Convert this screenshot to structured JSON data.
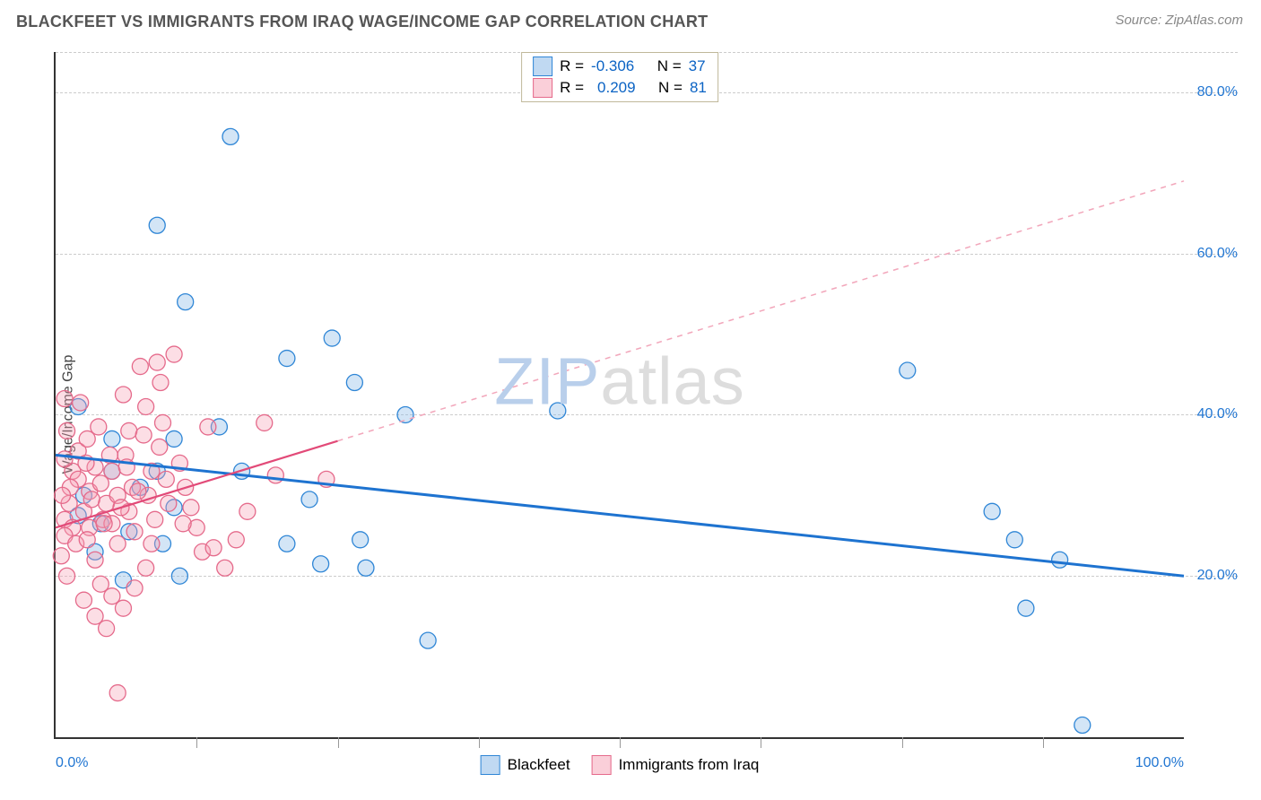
{
  "header": {
    "title": "BLACKFEET VS IMMIGRANTS FROM IRAQ WAGE/INCOME GAP CORRELATION CHART",
    "source": "Source: ZipAtlas.com"
  },
  "watermark": {
    "part1": "ZIP",
    "part2": "atlas"
  },
  "chart": {
    "type": "scatter",
    "ylabel": "Wage/Income Gap",
    "xlim": [
      0,
      100
    ],
    "ylim": [
      0,
      85
    ],
    "background_color": "#ffffff",
    "grid_color": "#cccccc",
    "axis_color": "#333333",
    "tick_label_color": "#2176d2",
    "marker_radius": 9,
    "y_gridlines": [
      20,
      40,
      60,
      80
    ],
    "y_tick_labels": [
      "20.0%",
      "40.0%",
      "60.0%",
      "80.0%"
    ],
    "x_ticks_minor": [
      12.5,
      25,
      37.5,
      50,
      62.5,
      75,
      87.5
    ],
    "x_tick_labels": [
      {
        "pos": 0,
        "text": "0.0%",
        "align": "left"
      },
      {
        "pos": 100,
        "text": "100.0%",
        "align": "right"
      }
    ],
    "series": [
      {
        "name": "Blackfeet",
        "color_fill": "rgba(130,180,230,0.35)",
        "color_stroke": "#2f86d6",
        "R": "-0.306",
        "N": "37",
        "trend": {
          "x1": 0,
          "y1": 35.0,
          "x2": 100,
          "y2": 20.0,
          "solid_until_x": 100,
          "color": "#1e73d0",
          "width": 3
        },
        "points": [
          [
            15.5,
            74.5
          ],
          [
            9.0,
            63.5
          ],
          [
            11.5,
            54.0
          ],
          [
            20.5,
            47.0
          ],
          [
            24.5,
            49.5
          ],
          [
            31.0,
            40.0
          ],
          [
            14.5,
            38.5
          ],
          [
            10.5,
            37.0
          ],
          [
            16.5,
            33.0
          ],
          [
            9.0,
            33.0
          ],
          [
            5.0,
            33.0
          ],
          [
            2.5,
            30.0
          ],
          [
            2.0,
            27.5
          ],
          [
            10.5,
            28.5
          ],
          [
            20.5,
            24.0
          ],
          [
            22.5,
            29.5
          ],
          [
            27.5,
            21.0
          ],
          [
            23.5,
            21.5
          ],
          [
            27.0,
            24.5
          ],
          [
            11.0,
            20.0
          ],
          [
            4.0,
            26.5
          ],
          [
            33.0,
            12.0
          ],
          [
            44.5,
            40.5
          ],
          [
            75.5,
            45.5
          ],
          [
            83.0,
            28.0
          ],
          [
            85.0,
            24.5
          ],
          [
            89.0,
            22.0
          ],
          [
            86.0,
            16.0
          ],
          [
            91.0,
            1.5
          ],
          [
            2.0,
            41.0
          ],
          [
            5.0,
            37.0
          ],
          [
            7.5,
            31.0
          ],
          [
            6.5,
            25.5
          ],
          [
            3.5,
            23.0
          ],
          [
            6.0,
            19.5
          ],
          [
            9.5,
            24.0
          ],
          [
            26.5,
            44.0
          ]
        ]
      },
      {
        "name": "Immigrants from Iraq",
        "color_fill": "rgba(245,160,180,0.35)",
        "color_stroke": "#e56a8b",
        "R": "0.209",
        "N": "81",
        "trend": {
          "x1": 0,
          "y1": 26.0,
          "x2": 100,
          "y2": 69.0,
          "solid_until_x": 25,
          "color": "#e24a78",
          "dash_color": "#f2a7bb",
          "width": 2.2
        },
        "points": [
          [
            0.8,
            42.0
          ],
          [
            1.5,
            33.0
          ],
          [
            0.8,
            34.5
          ],
          [
            2.0,
            35.5
          ],
          [
            1.2,
            29.0
          ],
          [
            0.8,
            27.0
          ],
          [
            1.5,
            26.0
          ],
          [
            0.8,
            25.0
          ],
          [
            1.8,
            24.0
          ],
          [
            0.5,
            22.5
          ],
          [
            1.0,
            20.0
          ],
          [
            2.2,
            41.5
          ],
          [
            2.8,
            37.0
          ],
          [
            3.5,
            33.5
          ],
          [
            3.0,
            30.5
          ],
          [
            2.5,
            28.0
          ],
          [
            3.0,
            26.0
          ],
          [
            2.8,
            24.5
          ],
          [
            3.5,
            22.0
          ],
          [
            4.0,
            31.5
          ],
          [
            4.5,
            29.0
          ],
          [
            4.2,
            27.0
          ],
          [
            5.0,
            33.0
          ],
          [
            5.5,
            30.0
          ],
          [
            5.0,
            26.5
          ],
          [
            5.5,
            24.0
          ],
          [
            6.0,
            42.5
          ],
          [
            6.5,
            38.0
          ],
          [
            6.2,
            35.0
          ],
          [
            6.8,
            31.0
          ],
          [
            6.5,
            28.0
          ],
          [
            7.0,
            25.5
          ],
          [
            7.5,
            46.0
          ],
          [
            8.0,
            41.0
          ],
          [
            7.8,
            37.5
          ],
          [
            8.5,
            33.0
          ],
          [
            8.2,
            30.0
          ],
          [
            8.8,
            27.0
          ],
          [
            8.5,
            24.0
          ],
          [
            9.0,
            46.5
          ],
          [
            9.5,
            39.0
          ],
          [
            9.2,
            36.0
          ],
          [
            9.8,
            32.0
          ],
          [
            10.0,
            29.0
          ],
          [
            10.5,
            47.5
          ],
          [
            11.0,
            34.0
          ],
          [
            11.5,
            31.0
          ],
          [
            12.0,
            28.5
          ],
          [
            12.5,
            26.0
          ],
          [
            13.0,
            23.0
          ],
          [
            4.0,
            19.0
          ],
          [
            5.0,
            17.5
          ],
          [
            6.0,
            16.0
          ],
          [
            7.0,
            18.5
          ],
          [
            8.0,
            21.0
          ],
          [
            3.5,
            15.0
          ],
          [
            2.5,
            17.0
          ],
          [
            4.5,
            13.5
          ],
          [
            5.5,
            5.5
          ],
          [
            13.5,
            38.5
          ],
          [
            14.0,
            23.5
          ],
          [
            15.0,
            21.0
          ],
          [
            16.0,
            24.5
          ],
          [
            17.0,
            28.0
          ],
          [
            18.5,
            39.0
          ],
          [
            19.5,
            32.5
          ],
          [
            24.0,
            32.0
          ],
          [
            1.0,
            38.0
          ],
          [
            2.0,
            32.0
          ],
          [
            3.2,
            29.5
          ],
          [
            4.8,
            35.0
          ],
          [
            6.3,
            33.5
          ],
          [
            7.3,
            30.5
          ],
          [
            1.3,
            31.0
          ],
          [
            2.7,
            34.0
          ],
          [
            4.3,
            26.5
          ],
          [
            5.8,
            28.5
          ],
          [
            9.3,
            44.0
          ],
          [
            11.3,
            26.5
          ],
          [
            0.6,
            30.0
          ],
          [
            3.8,
            38.5
          ]
        ]
      }
    ],
    "legend_top": {
      "r_label": "R =",
      "n_label": "N ="
    },
    "legend_bottom": [
      {
        "swatch": "blue",
        "label": "Blackfeet"
      },
      {
        "swatch": "pink",
        "label": "Immigrants from Iraq"
      }
    ]
  }
}
